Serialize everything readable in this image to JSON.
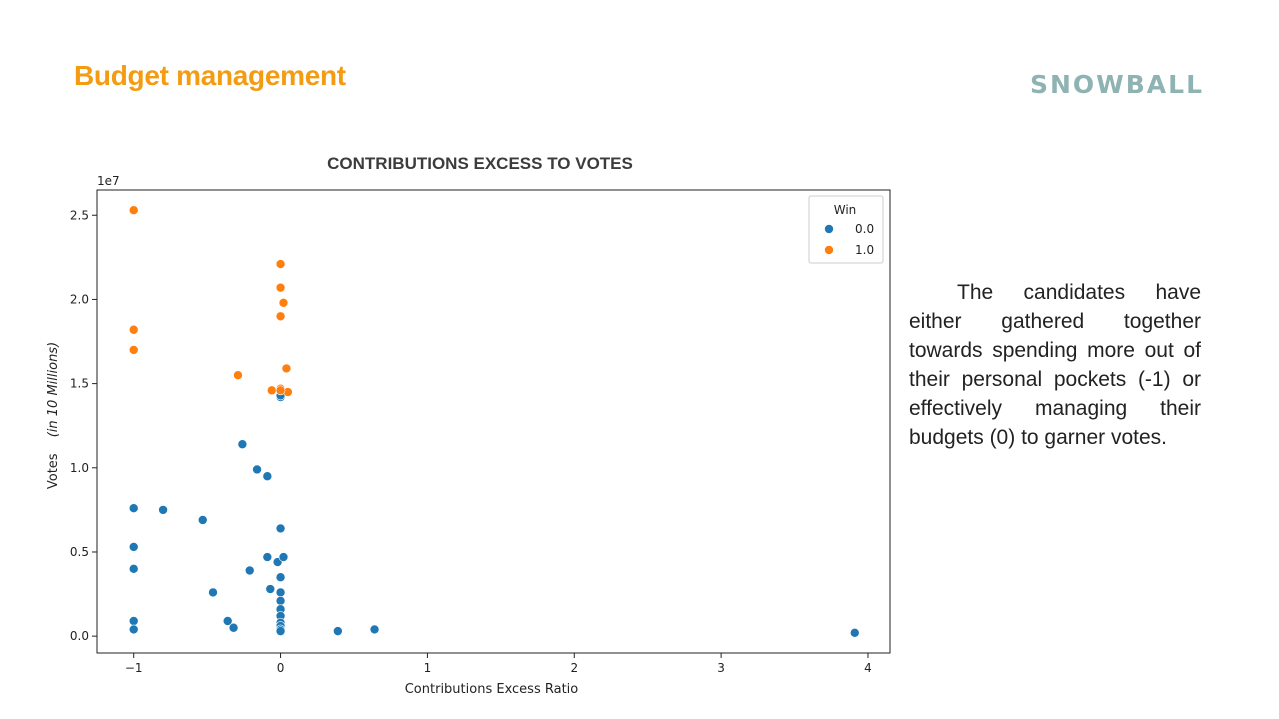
{
  "slide": {
    "title": "Budget management",
    "logo_text": "SNOWBALL",
    "description": "The candidates have either gathered together towards spending more out of their personal pockets (-1) or effectively managing their budgets (0) to garner votes."
  },
  "colors": {
    "title": "#f39c12",
    "logo": "#8fb3b3",
    "series_0": "#1f77b4",
    "series_1": "#ff7f0e"
  },
  "chart_data": {
    "type": "scatter",
    "title": "CONTRIBUTIONS EXCESS TO VOTES",
    "xlabel": "Contributions Excess Ratio",
    "ylabel": "Votes",
    "ylabel_note": "(in 10 Millions)",
    "y_offset_label": "1e7",
    "xlim": [
      -1.25,
      4.15
    ],
    "ylim": [
      -0.1,
      2.65
    ],
    "x_ticks": [
      -1,
      0,
      1,
      2,
      3,
      4
    ],
    "x_tick_labels": [
      "−1",
      "0",
      "1",
      "2",
      "3",
      "4"
    ],
    "y_ticks": [
      0,
      0.5,
      1.0,
      1.5,
      2.0,
      2.5
    ],
    "y_tick_labels": [
      "0.0",
      "0.5",
      "1.0",
      "1.5",
      "2.0",
      "2.5"
    ],
    "grid": false,
    "legend": {
      "title": "Win",
      "placement": "top-right"
    },
    "series": [
      {
        "name": "0.0",
        "points": [
          [
            -1,
            0.76
          ],
          [
            -1,
            0.53
          ],
          [
            -1,
            0.4
          ],
          [
            -1,
            0.09
          ],
          [
            -1,
            0.04
          ],
          [
            -0.8,
            0.75
          ],
          [
            -0.53,
            0.69
          ],
          [
            -0.46,
            0.26
          ],
          [
            -0.36,
            0.09
          ],
          [
            -0.32,
            0.05
          ],
          [
            -0.26,
            1.14
          ],
          [
            -0.21,
            0.39
          ],
          [
            -0.16,
            0.99
          ],
          [
            -0.09,
            0.95
          ],
          [
            -0.09,
            0.47
          ],
          [
            -0.07,
            0.28
          ],
          [
            -0.02,
            0.44
          ],
          [
            0,
            0.64
          ],
          [
            0,
            0.35
          ],
          [
            0,
            0.26
          ],
          [
            0,
            0.21
          ],
          [
            0,
            0.16
          ],
          [
            0,
            0.12
          ],
          [
            0,
            0.08
          ],
          [
            0,
            0.06
          ],
          [
            0,
            0.04
          ],
          [
            0,
            0.03
          ],
          [
            0.02,
            0.47
          ],
          [
            0,
            1.42
          ],
          [
            0,
            1.43
          ],
          [
            0.39,
            0.03
          ],
          [
            0.64,
            0.04
          ],
          [
            3.91,
            0.02
          ]
        ]
      },
      {
        "name": "1.0",
        "points": [
          [
            -1,
            2.53
          ],
          [
            -1,
            1.82
          ],
          [
            -1,
            1.7
          ],
          [
            -0.29,
            1.55
          ],
          [
            -0.06,
            1.46
          ],
          [
            0,
            2.21
          ],
          [
            0,
            2.07
          ],
          [
            0.02,
            1.98
          ],
          [
            0,
            1.9
          ],
          [
            0.04,
            1.59
          ],
          [
            0,
            1.47
          ],
          [
            0.05,
            1.45
          ],
          [
            0,
            1.46
          ]
        ]
      }
    ]
  }
}
